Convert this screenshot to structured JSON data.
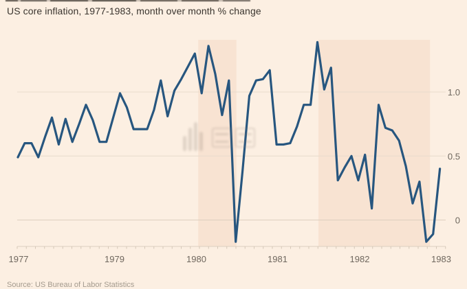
{
  "title": "US core inflation, 1977-1983, month over month % change",
  "source_note": "Source: US Bureau of Labor Statistics",
  "watermark_icon": "equalizer-bars-icon",
  "colors": {
    "background": "#fcefe2",
    "line": "#27567f",
    "recession_band": "#f8e3d2",
    "gridline": "#e7dbcc",
    "zero_gridline": "#ddcfbf",
    "axis_text": "#6f675e",
    "title_text": "#3a352f"
  },
  "chart_data": {
    "type": "line",
    "title": "US core inflation, 1977-1983, month over month % change",
    "ylabel": "month over month % change",
    "x_tick_labels": [
      "1977",
      "1979",
      "1980",
      "1981",
      "1982",
      "1983"
    ],
    "y_ticks": [
      {
        "label": "1.0",
        "value": 1.0
      },
      {
        "label": "0.5",
        "value": 0.5
      },
      {
        "label": "0",
        "value": 0
      }
    ],
    "ylim": [
      -0.25,
      1.45
    ],
    "grid": true,
    "legend": false,
    "values": [
      0.49,
      0.6,
      0.6,
      0.49,
      0.65,
      0.8,
      0.59,
      0.79,
      0.61,
      0.75,
      0.9,
      0.78,
      0.61,
      0.61,
      0.8,
      0.99,
      0.88,
      0.71,
      0.71,
      0.71,
      0.86,
      1.09,
      0.81,
      1.01,
      1.1,
      1.2,
      1.3,
      0.99,
      1.36,
      1.14,
      0.82,
      1.09,
      -0.17,
      0.38,
      0.97,
      1.09,
      1.1,
      1.17,
      0.59,
      0.59,
      0.6,
      0.73,
      0.9,
      0.9,
      1.39,
      1.02,
      1.19,
      0.31,
      0.41,
      0.5,
      0.31,
      0.51,
      0.09,
      0.9,
      0.72,
      0.7,
      0.62,
      0.42,
      0.13,
      0.3,
      -0.17,
      -0.11,
      0.4
    ],
    "recession_bands_month_index": [
      [
        26.5,
        32.1
      ],
      [
        44.15,
        60.55
      ]
    ]
  }
}
